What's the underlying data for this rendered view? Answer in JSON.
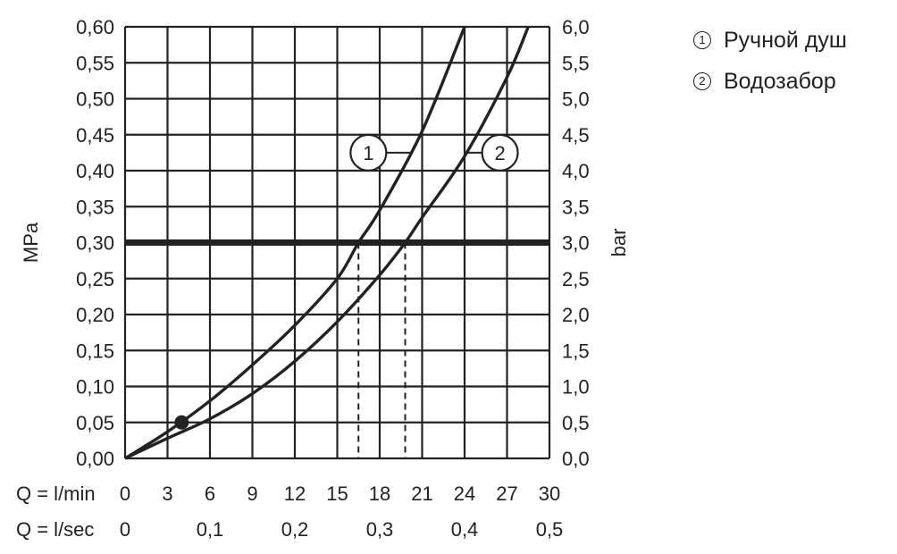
{
  "chart_data": {
    "type": "line",
    "xlabel_rows": [
      {
        "prefix": "Q = l/min",
        "ticks": [
          "0",
          "3",
          "6",
          "9",
          "12",
          "15",
          "18",
          "21",
          "24",
          "27",
          "30"
        ],
        "values": [
          0,
          3,
          6,
          9,
          12,
          15,
          18,
          21,
          24,
          27,
          30
        ]
      },
      {
        "prefix": "Q = l/sec",
        "ticks": [
          "0",
          "0,1",
          "0,2",
          "0,3",
          "0,4",
          "0,5"
        ],
        "values": [
          0,
          0.1,
          0.2,
          0.3,
          0.4,
          0.5
        ]
      }
    ],
    "ylabel_left": "MPa",
    "ylabel_right": "bar",
    "xlim": [
      0,
      30
    ],
    "ylim": [
      0,
      0.6
    ],
    "y_ticks_left": [
      "0,00",
      "0,05",
      "0,10",
      "0,15",
      "0,20",
      "0,25",
      "0,30",
      "0,35",
      "0,40",
      "0,45",
      "0,50",
      "0,55",
      "0,60"
    ],
    "y_ticks_right": [
      "0,0",
      "0,5",
      "1,0",
      "1,5",
      "2,0",
      "2,5",
      "3,0",
      "3,5",
      "4,0",
      "4,5",
      "5,0",
      "5,5",
      "6,0"
    ],
    "grid": true,
    "reference_line": {
      "y": 0.3
    },
    "marker_point": {
      "x": 4,
      "y": 0.05
    },
    "series": [
      {
        "name": "Ручной душ",
        "label": "1",
        "x": [
          0,
          3,
          6,
          9,
          12,
          15,
          16.5,
          18,
          21,
          24
        ],
        "y": [
          0,
          0.037,
          0.08,
          0.13,
          0.185,
          0.25,
          0.3,
          0.345,
          0.455,
          0.6
        ],
        "label_at": {
          "x": 17.2,
          "y": 0.425
        }
      },
      {
        "name": "Водозабор",
        "label": "2",
        "x": [
          0,
          3,
          6,
          9,
          12,
          15,
          18,
          19.8,
          21,
          24,
          27,
          28.5
        ],
        "y": [
          0,
          0.028,
          0.055,
          0.09,
          0.135,
          0.19,
          0.255,
          0.3,
          0.335,
          0.42,
          0.53,
          0.6
        ],
        "label_at": {
          "x": 26.5,
          "y": 0.425
        }
      }
    ],
    "drop_lines_x": [
      16.5,
      19.8
    ]
  },
  "legend": {
    "items": [
      {
        "marker": "1",
        "label": "Ручной душ"
      },
      {
        "marker": "2",
        "label": "Водозабор"
      }
    ]
  }
}
